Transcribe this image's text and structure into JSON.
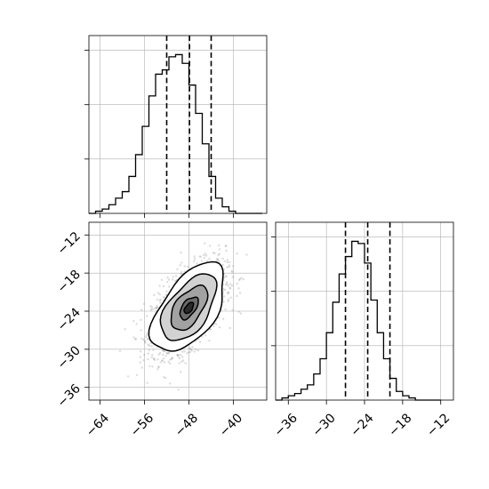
{
  "chart_data": {
    "type": "corner",
    "parameters": [
      {
        "ticks": [
          -64,
          -56,
          -48,
          -40
        ],
        "range": [
          -66,
          -34
        ],
        "tick_labels": [
          "−64",
          "−56",
          "−48",
          "−40"
        ],
        "quantiles": [
          -52.0,
          -47.9,
          -44.0
        ],
        "hist_edges_step": 1.2,
        "hist_counts": [
          0,
          1,
          2,
          4,
          7,
          10,
          17,
          27,
          40,
          54,
          64,
          66,
          72,
          73,
          69,
          59,
          46,
          32,
          17,
          7,
          3,
          1,
          0,
          0,
          0,
          0
        ]
      },
      {
        "ticks": [
          -36,
          -30,
          -24,
          -18,
          -12
        ],
        "range": [
          -38,
          -10
        ],
        "tick_labels": [
          "−36",
          "−30",
          "−24",
          "−18",
          "−12"
        ],
        "quantiles": [
          -27.0,
          -23.5,
          -20.0
        ],
        "hist_edges_step": 1.0,
        "hist_counts": [
          0,
          1,
          2,
          3,
          5,
          7,
          12,
          19,
          31,
          45,
          58,
          66,
          73,
          72,
          63,
          46,
          31,
          19,
          10,
          4,
          2,
          1,
          0,
          0,
          0,
          0
        ]
      }
    ],
    "joint": {
      "x_mean": -48.0,
      "y_mean": -23.5,
      "x_sd": 3.3,
      "y_sd": 3.5,
      "correlation": 0.55,
      "n_points": 1800,
      "contour_sigma_levels": [
        0.5,
        1.0,
        1.5,
        2.0
      ],
      "fill_grays": [
        "#ffffff",
        "#d2d2d2",
        "#a2a2a2",
        "#6a6a6a",
        "#2b2b2b"
      ]
    },
    "grid": true,
    "colors": {
      "line": "#000000",
      "points": "#9a9a9a",
      "grid": "#b0b0b0"
    }
  }
}
